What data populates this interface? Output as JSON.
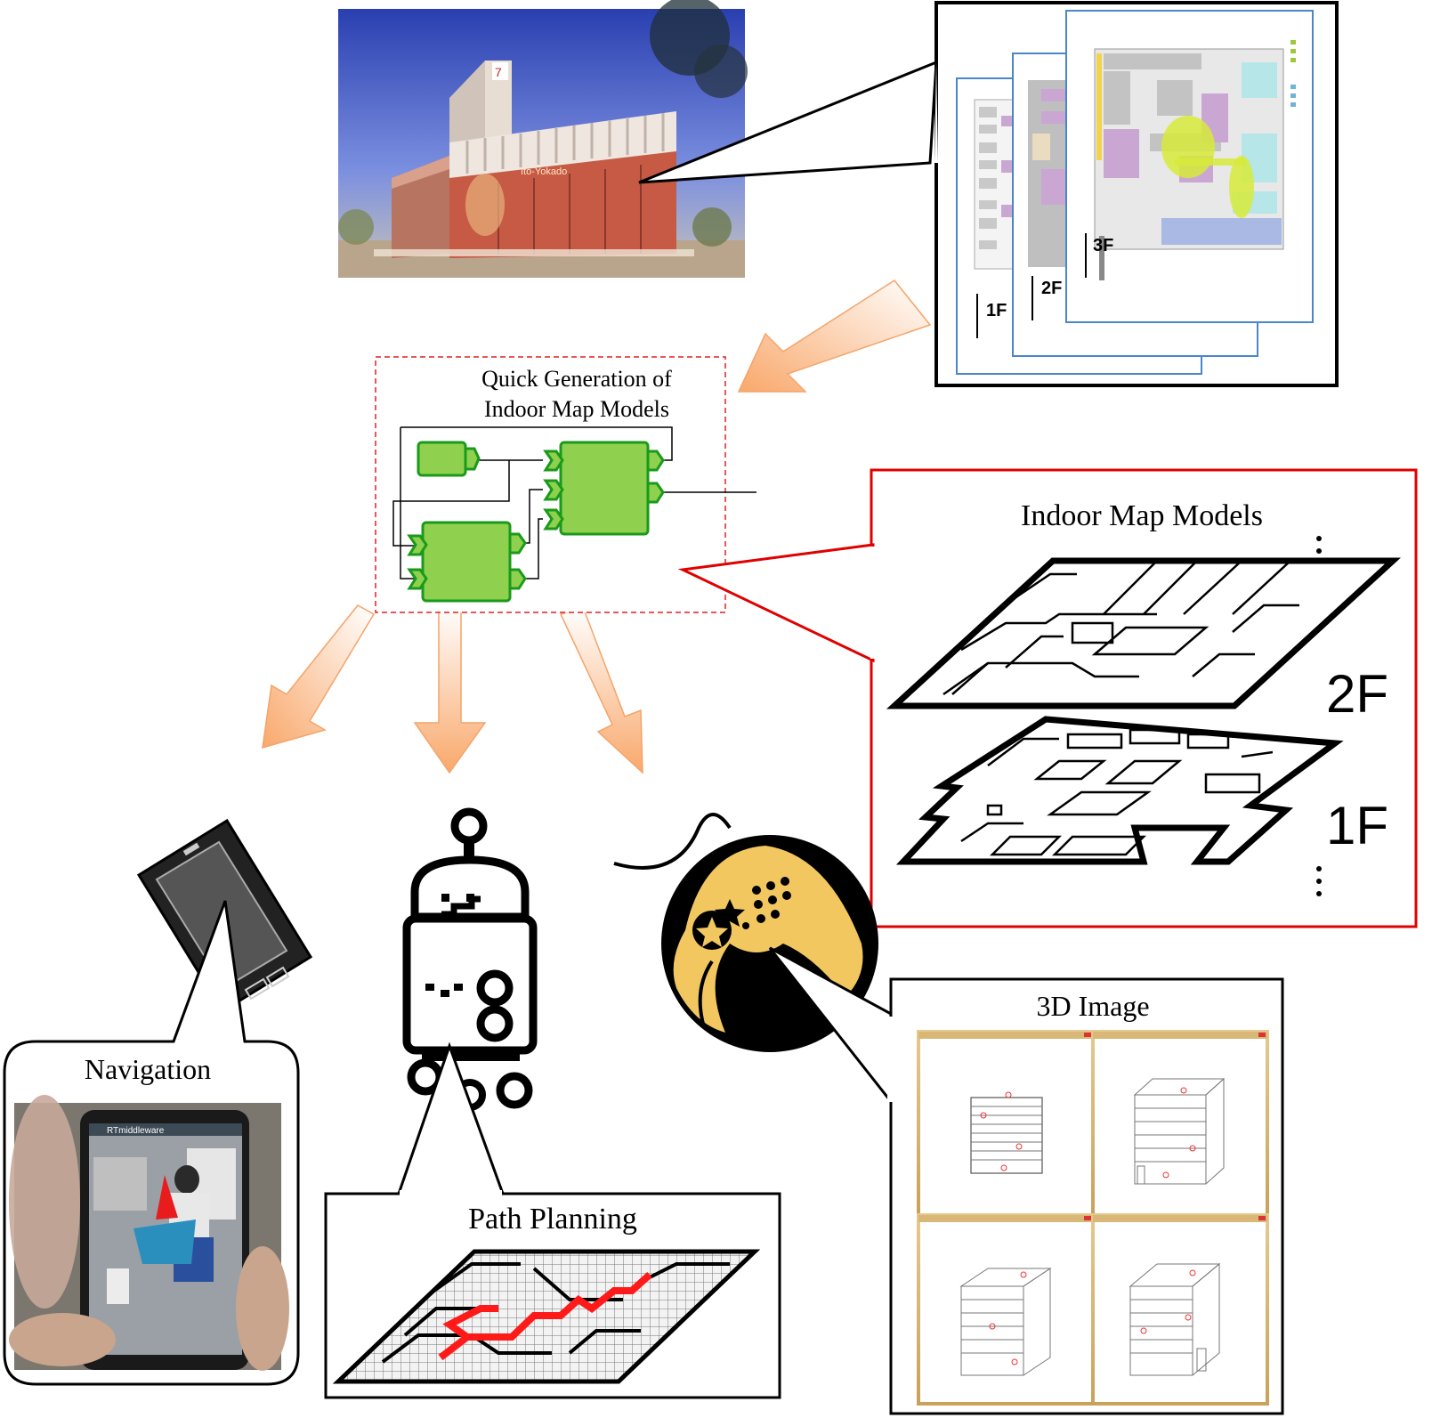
{
  "labels": {
    "quick_generation_line1": "Quick Generation of",
    "quick_generation_line2": "Indoor Map Models",
    "indoor_map_models": "Indoor Map Models",
    "floor_2f": "2F",
    "floor_1f": "1F",
    "navigation": "Navigation",
    "path_planning": "Path Planning",
    "image_3d": "3D Image",
    "phone_app_bar": "RTmiddleware"
  },
  "floor_plan_sheets": {
    "floor_badges": [
      "1F",
      "2F",
      "3F"
    ]
  },
  "colors": {
    "component_green": "#8fd14f",
    "component_border": "#1a9a1a",
    "arrow_orange": "#f9b98a",
    "highlight_red": "#e00000",
    "gold": "#f2c760",
    "sheet_blue": "#4a86c8",
    "path_red": "#ff1a1a"
  }
}
